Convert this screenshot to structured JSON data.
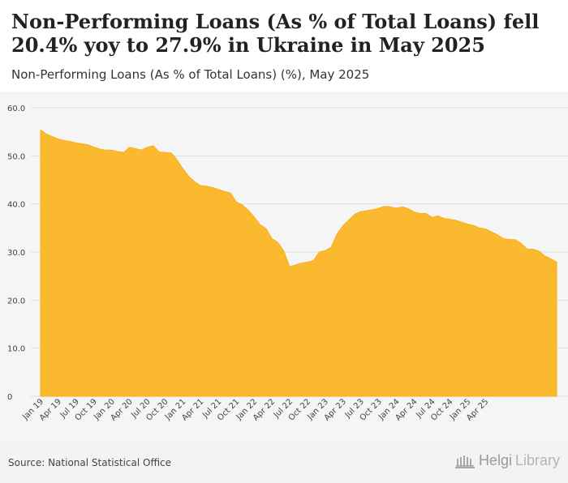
{
  "header": {
    "title": "Non-Performing Loans (As % of Total Loans) fell 20.4% yoy to 27.9% in Ukraine in May 2025",
    "subtitle": "Non-Performing Loans (As % of Total Loans) (%), May 2025"
  },
  "footer": {
    "source": "Source: National Statistical Office",
    "logo_main": "Helgi",
    "logo_suffix": "Library"
  },
  "colors": {
    "area_fill": "#fbb92f",
    "area_edge": "#f7ae1c",
    "grid": "#dddddd",
    "tick_text": "#444444",
    "plot_bg": "#f5f5f5"
  },
  "chart_data": {
    "type": "area",
    "title": "Non-Performing Loans (As % of Total Loans) (%), May 2025",
    "xlabel": "",
    "ylabel": "",
    "ylim": [
      0,
      60
    ],
    "yticks": [
      "0",
      "10.0",
      "20.0",
      "30.0",
      "40.0",
      "50.0",
      "60.0"
    ],
    "ytick_values": [
      0,
      10,
      20,
      30,
      40,
      50,
      60
    ],
    "grid": true,
    "x_start": "Jan 19",
    "xtick_labels": [
      "Jan 19",
      "Apr 19",
      "Jul 19",
      "Oct 19",
      "Jan 20",
      "Apr 20",
      "Jul 20",
      "Oct 20",
      "Jan 21",
      "Apr 21",
      "Jul 21",
      "Oct 21",
      "Jan 22",
      "Apr 22",
      "Jul 22",
      "Oct 22",
      "Jan 23",
      "Apr 23",
      "Jul 23",
      "Oct 23",
      "Jan 24",
      "Apr 24",
      "Jul 24",
      "Oct 24",
      "Jan 25",
      "Apr 25"
    ],
    "series": [
      {
        "name": "Non-Performing Loans (As % of Total Loans)",
        "values": [
          55.4,
          54.5,
          54.0,
          53.5,
          53.2,
          53.0,
          52.7,
          52.5,
          52.3,
          51.8,
          51.4,
          51.2,
          51.2,
          50.9,
          50.7,
          51.8,
          51.5,
          51.2,
          51.8,
          52.1,
          50.8,
          50.7,
          50.6,
          49.2,
          47.3,
          45.7,
          44.6,
          43.8,
          43.7,
          43.4,
          43.0,
          42.6,
          42.3,
          40.4,
          39.8,
          38.7,
          37.3,
          35.7,
          34.9,
          32.8,
          32.0,
          30.2,
          26.9,
          27.3,
          27.7,
          27.9,
          28.2,
          30.0,
          30.3,
          31.0,
          33.8,
          35.5,
          36.7,
          37.9,
          38.4,
          38.6,
          38.8,
          39.1,
          39.5,
          39.4,
          39.1,
          39.4,
          39.0,
          38.3,
          38.0,
          38.0,
          37.2,
          37.5,
          37.0,
          36.8,
          36.6,
          36.2,
          35.8,
          35.5,
          35.0,
          34.8,
          34.2,
          33.6,
          32.8,
          32.6,
          32.6,
          31.8,
          30.6,
          30.6,
          30.2,
          29.2,
          28.6,
          27.9
        ]
      }
    ]
  }
}
